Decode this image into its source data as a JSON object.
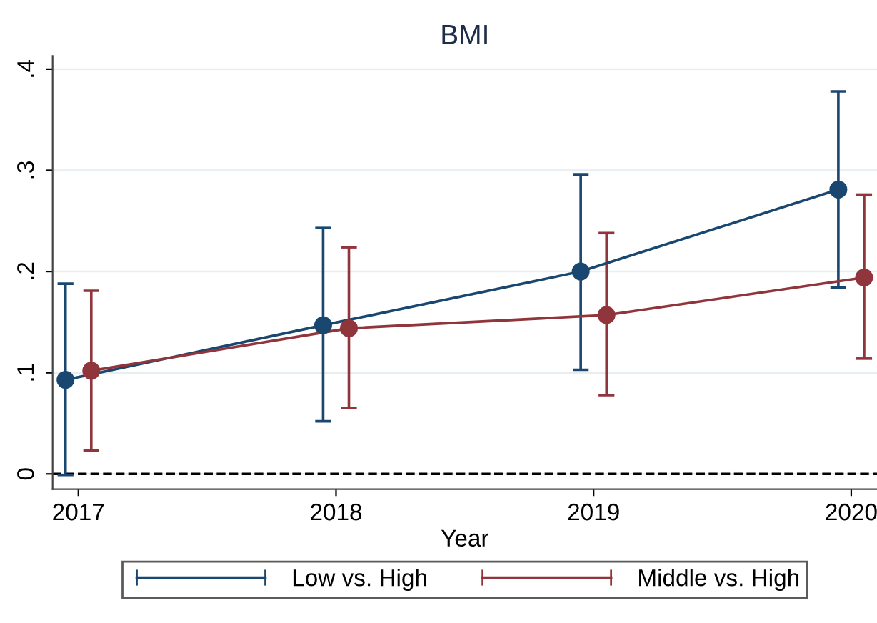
{
  "chart_data": {
    "type": "line",
    "title": "BMI",
    "xlabel": "Year",
    "xlim": [
      2016.9,
      2020.1
    ],
    "xticks": [
      2017,
      2018,
      2019,
      2020
    ],
    "ylim": [
      -0.015,
      0.413
    ],
    "yticks": [
      {
        "value": 0,
        "label": "0"
      },
      {
        "value": 0.1,
        "label": ".1"
      },
      {
        "value": 0.2,
        "label": ".2"
      },
      {
        "value": 0.3,
        "label": ".3"
      },
      {
        "value": 0.4,
        "label": ".4"
      }
    ],
    "grid": "y",
    "legend": "bottom",
    "marker": "circle",
    "line_style": "solid",
    "ref_lines": [
      {
        "axis": "y",
        "value": 0,
        "color": "#000000",
        "line_style": "dashed"
      }
    ],
    "series": [
      {
        "name": "Low vs. High",
        "color": "#1a476f",
        "x": [
          2016.95,
          2017.95,
          2018.95,
          2019.95
        ],
        "values": [
          0.093,
          0.147,
          0.2,
          0.281
        ],
        "errors": [
          [
            -0.001,
            0.188
          ],
          [
            0.052,
            0.243
          ],
          [
            0.103,
            0.296
          ],
          [
            0.184,
            0.378
          ]
        ]
      },
      {
        "name": "Middle vs. High",
        "color": "#90353b",
        "x": [
          2017.05,
          2018.05,
          2019.05,
          2020.05
        ],
        "values": [
          0.102,
          0.144,
          0.157,
          0.194
        ],
        "errors": [
          [
            0.023,
            0.181
          ],
          [
            0.065,
            0.224
          ],
          [
            0.078,
            0.238
          ],
          [
            0.114,
            0.276
          ]
        ]
      }
    ]
  }
}
